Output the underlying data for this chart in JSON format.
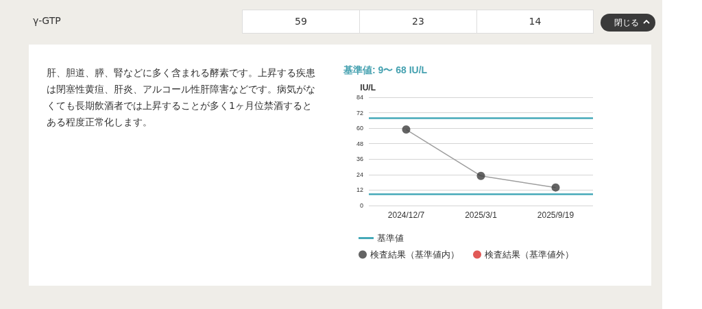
{
  "chart_data": {
    "type": "line",
    "title": "基準値: 9〜 68 IU/L",
    "ylabel": "IU/L",
    "categories": [
      "2024/12/7",
      "2025/3/1",
      "2025/9/19"
    ],
    "series": [
      {
        "color": "#9e9e9e",
        "values": [
          59,
          23,
          14
        ],
        "marker": "none"
      },
      {
        "type": "scatter",
        "name": "検査結果（基準値内）",
        "color": "#3d3d3d",
        "values": [
          59,
          23,
          14
        ],
        "marker": "circle"
      },
      {
        "type": "scatter",
        "name": "検査結果（基準値外）",
        "color": "#d9302c",
        "values": [
          null,
          null,
          null
        ],
        "marker": "circle"
      }
    ],
    "ylim": [
      0,
      84
    ],
    "yticks": [
      0,
      12,
      24,
      36,
      48,
      60,
      72,
      84
    ],
    "grid": "y",
    "legend": "bottom",
    "ref_lines": [
      {
        "axis": "y",
        "value": 68,
        "label": "基準値",
        "color": "#45a9b8"
      },
      {
        "axis": "y",
        "value": 9,
        "color": "#45a9b8"
      }
    ],
    "annotations": [
      "γ-GTP",
      "59",
      "23",
      "14",
      "閉じる",
      "肝、胆道、膵、腎などに多く含まれる酵素です。上昇する疾患は閉塞性黄疸、肝炎、アルコール性肝障害などです。病気がなくても長期飲酒者では上昇することが多く1ヶ月位禁酒するとある程度正常化します。"
    ]
  }
}
